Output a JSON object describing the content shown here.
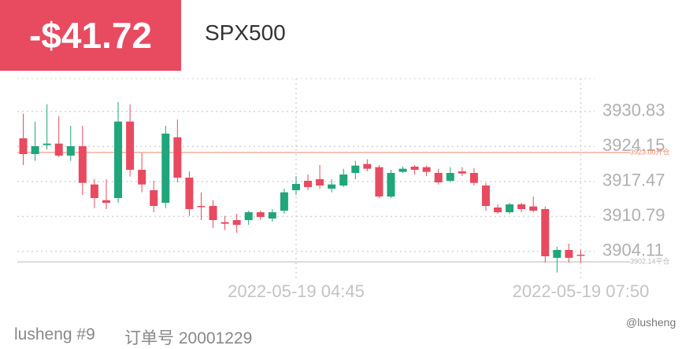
{
  "header": {
    "pnl": "-$41.72",
    "symbol": "SPX500"
  },
  "chart_data": {
    "type": "candlestick",
    "categories": [
      null,
      null,
      null,
      null,
      null,
      null,
      null,
      null,
      null,
      null,
      null,
      null,
      null,
      null,
      null,
      null,
      null,
      null,
      null,
      null,
      null,
      null,
      null,
      "2022-05-19 04:45",
      null,
      null,
      null,
      null,
      null,
      null,
      null,
      null,
      null,
      null,
      null,
      null,
      null,
      null,
      null,
      null,
      null,
      null,
      null,
      null,
      null,
      null,
      null,
      "2022-05-19 07:50"
    ],
    "open": [
      3925.7,
      3922.7,
      3924.4,
      3924.7,
      3922.4,
      3924.2,
      3916.9,
      3913.9,
      3914.3,
      3928.9,
      3919.7,
      3915.8,
      3913.4,
      3925.9,
      3918.2,
      3912.8,
      3912.8,
      3909.7,
      3910.1,
      3910.1,
      3911.6,
      3910.4,
      3911.9,
      3915.8,
      3917.6,
      3917.9,
      3916.1,
      3916.7,
      3919.1,
      3920.8,
      3920.2,
      3914.6,
      3919.3,
      3920.3,
      3920.2,
      3919.1,
      3917.6,
      3919.4,
      3919.1,
      3916.7,
      3912.5,
      3911.6,
      3913.1,
      3912.7,
      3912.2,
      3902.9,
      3904.4,
      3903.5
    ],
    "high": [
      3930.4,
      3928.9,
      3932.2,
      3929.9,
      3928.1,
      3928.1,
      3917.9,
      3917.9,
      3932.6,
      3932.2,
      3922.9,
      3917.6,
      3928.1,
      3929.3,
      3919.4,
      3915.4,
      3913.9,
      3910.9,
      3911.3,
      3911.9,
      3911.9,
      3912.2,
      3916.1,
      3918.5,
      3918.8,
      3920.6,
      3917.9,
      3919.9,
      3921.4,
      3921.7,
      3920.6,
      3919.7,
      3920.3,
      3920.6,
      3920.5,
      3919.9,
      3920.2,
      3920.2,
      3920.0,
      3917.2,
      3913.1,
      3913.4,
      3913.4,
      3914.6,
      3912.7,
      3905.0,
      3905.6,
      3904.4
    ],
    "low": [
      3920.6,
      3921.4,
      3923.6,
      3922.1,
      3921.4,
      3914.9,
      3912.4,
      3912.2,
      3913.4,
      3918.4,
      3915.4,
      3911.6,
      3912.4,
      3917.3,
      3910.9,
      3910.1,
      3908.6,
      3908.2,
      3907.7,
      3909.2,
      3910.1,
      3909.8,
      3911.3,
      3914.9,
      3915.8,
      3916.1,
      3915.4,
      3916.4,
      3917.9,
      3919.4,
      3914.3,
      3914.3,
      3919.1,
      3918.8,
      3918.5,
      3916.9,
      3917.3,
      3918.5,
      3916.7,
      3911.9,
      3911.3,
      3911.3,
      3911.6,
      3911.6,
      3902.0,
      3900.1,
      3902.0,
      3902.0
    ],
    "close": [
      3922.7,
      3924.2,
      3924.7,
      3922.4,
      3924.2,
      3917.2,
      3914.3,
      3913.4,
      3928.9,
      3919.7,
      3916.9,
      3912.8,
      3926.6,
      3918.2,
      3912.2,
      3912.7,
      3910.1,
      3909.4,
      3909.2,
      3911.6,
      3910.7,
      3911.6,
      3915.4,
      3917.0,
      3916.4,
      3916.7,
      3916.9,
      3918.8,
      3920.5,
      3919.9,
      3914.6,
      3919.1,
      3919.9,
      3919.7,
      3919.3,
      3917.3,
      3919.1,
      3919.0,
      3917.2,
      3912.8,
      3911.6,
      3913.1,
      3912.2,
      3911.9,
      3903.2,
      3904.4,
      3902.9,
      3903.4
    ],
    "up_color": "#1fa67a",
    "down_color": "#e84a5f",
    "ylim": [
      3899.6,
      3937.1
    ],
    "yticks": [
      3930.83,
      3924.15,
      3917.47,
      3910.79,
      3904.11
    ],
    "grid": true,
    "price_lines": [
      {
        "value": 3923.0,
        "label": "3923.00开仓",
        "color": "#f08466"
      },
      {
        "value": 3902.14,
        "label": "3902.14平仓",
        "color": "#b8b8b8"
      }
    ]
  },
  "footer": {
    "account": "lusheng #9",
    "order": "订单号 20001229",
    "watermark": "@lusheng"
  }
}
